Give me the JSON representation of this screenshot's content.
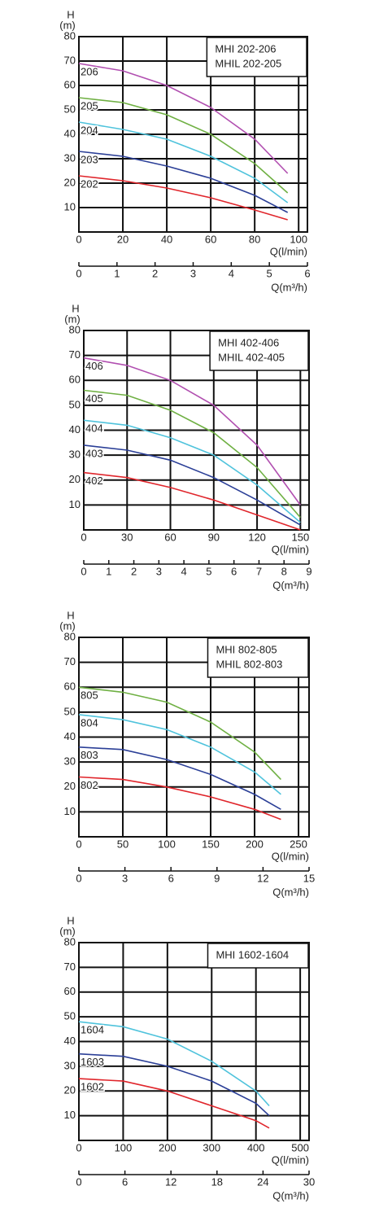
{
  "chart_data": [
    {
      "type": "line",
      "y_label_top": "H",
      "y_label_unit": "(m)",
      "x_label": "Q(l/min)",
      "x2_label": "Q(m³/h)",
      "box_lines": [
        "MHI   202-206",
        "MHIL 202-205"
      ],
      "ylim": [
        0,
        80
      ],
      "yticks": [
        10,
        20,
        30,
        40,
        50,
        60,
        70,
        80
      ],
      "xlim": [
        0,
        104
      ],
      "xticks": [
        0,
        20,
        40,
        60,
        80,
        100
      ],
      "x2lim": [
        0,
        6
      ],
      "x2ticks": [
        0,
        1,
        2,
        3,
        4,
        5,
        6
      ],
      "grid": true,
      "x": [
        0,
        20,
        40,
        60,
        80,
        95
      ],
      "series": [
        {
          "name": "206",
          "color": "#b14fb0",
          "values": [
            69,
            66,
            60,
            51,
            38,
            24
          ]
        },
        {
          "name": "205",
          "color": "#6fb043",
          "values": [
            55,
            53,
            48,
            40,
            28,
            16
          ]
        },
        {
          "name": "204",
          "color": "#4fc3dc",
          "values": [
            45,
            42,
            38,
            31,
            22,
            12
          ]
        },
        {
          "name": "203",
          "color": "#2b3f97",
          "values": [
            33,
            31,
            27,
            22,
            15,
            8
          ]
        },
        {
          "name": "202",
          "color": "#e0262c",
          "values": [
            23,
            21,
            18,
            14,
            9,
            5
          ]
        }
      ]
    },
    {
      "type": "line",
      "y_label_top": "H",
      "y_label_unit": "(m)",
      "x_label": "Q(l/min)",
      "x2_label": "Q(m³/h)",
      "box_lines": [
        "MHI   402-406",
        "MHIL 402-405"
      ],
      "ylim": [
        0,
        80
      ],
      "yticks": [
        10,
        20,
        30,
        40,
        50,
        60,
        70,
        80
      ],
      "xlim": [
        0,
        156
      ],
      "xticks": [
        0,
        30,
        60,
        90,
        120,
        150
      ],
      "x2lim": [
        0,
        9
      ],
      "x2ticks": [
        0,
        1,
        2,
        3,
        4,
        5,
        6,
        7,
        8,
        9
      ],
      "grid": true,
      "x": [
        0,
        30,
        60,
        90,
        120,
        150
      ],
      "series": [
        {
          "name": "406",
          "color": "#b14fb0",
          "values": [
            69,
            66,
            60,
            50,
            34,
            10
          ]
        },
        {
          "name": "405",
          "color": "#6fb043",
          "values": [
            56,
            54,
            48,
            39,
            25,
            5
          ]
        },
        {
          "name": "404",
          "color": "#4fc3dc",
          "values": [
            44,
            42,
            37,
            30,
            18,
            3
          ]
        },
        {
          "name": "403",
          "color": "#2b3f97",
          "values": [
            34,
            32,
            28,
            21,
            12,
            2
          ]
        },
        {
          "name": "402",
          "color": "#e0262c",
          "values": [
            23,
            21,
            17,
            12,
            6,
            0
          ]
        }
      ]
    },
    {
      "type": "line",
      "y_label_top": "H",
      "y_label_unit": "(m)",
      "x_label": "Q(l/min)",
      "x2_label": "Q(m³/h)",
      "box_lines": [
        "MHI   802-805",
        "MHIL 802-803"
      ],
      "ylim": [
        0,
        80
      ],
      "yticks": [
        10,
        20,
        30,
        40,
        50,
        60,
        70,
        80
      ],
      "xlim": [
        0,
        262
      ],
      "xticks": [
        0,
        50,
        100,
        150,
        200,
        250
      ],
      "x2lim": [
        0,
        15
      ],
      "x2ticks": [
        0,
        3,
        6,
        9,
        12,
        15
      ],
      "grid": true,
      "x": [
        0,
        50,
        100,
        150,
        200,
        230
      ],
      "series": [
        {
          "name": "805",
          "color": "#6fb043",
          "values": [
            60,
            58,
            54,
            46,
            34,
            23
          ]
        },
        {
          "name": "804",
          "color": "#4fc3dc",
          "values": [
            49,
            47,
            43,
            36,
            26,
            17
          ]
        },
        {
          "name": "803",
          "color": "#2b3f97",
          "values": [
            36,
            35,
            31,
            25,
            17,
            11
          ]
        },
        {
          "name": "802",
          "color": "#e0262c",
          "values": [
            24,
            23,
            20,
            16,
            11,
            7
          ]
        }
      ]
    },
    {
      "type": "line",
      "y_label_top": "H",
      "y_label_unit": "(m)",
      "x_label": "Q(l/min)",
      "x2_label": "Q(m³/h)",
      "box_lines": [
        "MHI 1602-1604"
      ],
      "ylim": [
        0,
        80
      ],
      "yticks": [
        10,
        20,
        30,
        40,
        50,
        60,
        70,
        80
      ],
      "xlim": [
        0,
        520
      ],
      "xticks": [
        0,
        100,
        200,
        300,
        400,
        500
      ],
      "x2lim": [
        0,
        30
      ],
      "x2ticks": [
        0,
        6,
        12,
        18,
        24,
        30
      ],
      "grid": true,
      "x": [
        0,
        100,
        200,
        300,
        400,
        430
      ],
      "series": [
        {
          "name": "1604",
          "color": "#4fc3dc",
          "values": [
            48,
            46,
            41,
            32,
            20,
            14
          ]
        },
        {
          "name": "1603",
          "color": "#2b3f97",
          "values": [
            35,
            34,
            30,
            24,
            15,
            10
          ]
        },
        {
          "name": "1602",
          "color": "#e0262c",
          "values": [
            25,
            24,
            20,
            14,
            8,
            5
          ]
        }
      ]
    }
  ]
}
